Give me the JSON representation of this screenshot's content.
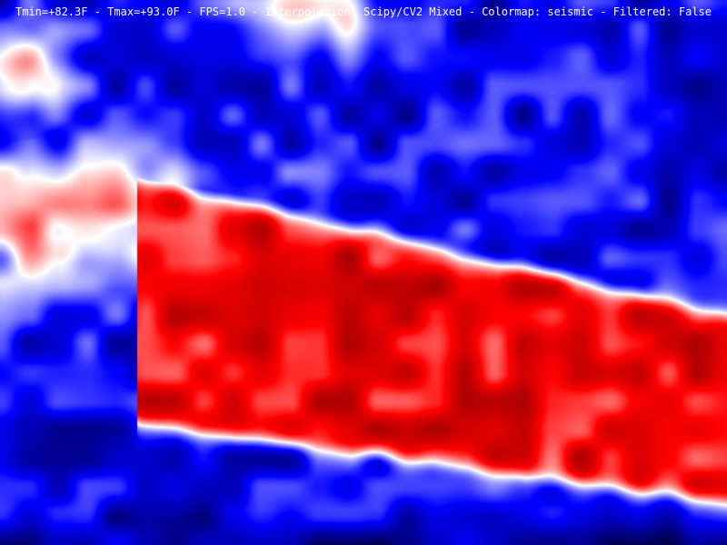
{
  "status_bar": {
    "tmin_label": "Tmin=",
    "tmin_value": "+82.3F",
    "tmax_label": "Tmax=",
    "tmax_value": "+93.0F",
    "fps_label": "FPS=",
    "fps_value": "1.0",
    "interpolation_label": "Interpolation:",
    "interpolation_value": "Scipy/CV2 Mixed",
    "colormap_label": "Colormap:",
    "colormap_value": "seismic",
    "filtered_label": "Filtered:",
    "filtered_value": "False",
    "separator": " - "
  },
  "colormap": {
    "name": "seismic",
    "cold_dark": "#00004c",
    "cold": "#0000ff",
    "neutral": "#ffffff",
    "hot": "#ff0000",
    "hot_dark": "#800000"
  }
}
